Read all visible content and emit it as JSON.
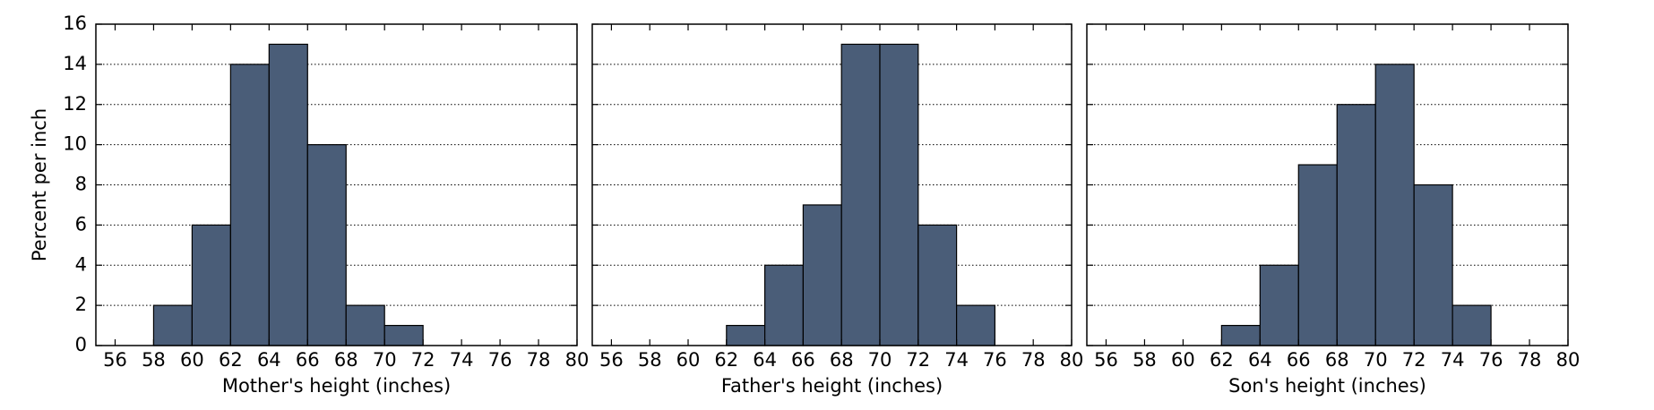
{
  "chart_data": [
    {
      "type": "histogram",
      "xlabel": "Mother's height (inches)",
      "ylabel": "Percent per inch",
      "bins": [
        56,
        58,
        60,
        62,
        64,
        66,
        68,
        70,
        72,
        74,
        76,
        78,
        80
      ],
      "values": [
        0,
        2,
        6,
        14,
        15,
        10,
        2,
        1,
        0,
        0,
        0,
        0
      ],
      "color": "#4a5d78",
      "xlim": [
        55,
        80
      ],
      "ylim": [
        0,
        16
      ],
      "xticks": [
        56,
        58,
        60,
        62,
        64,
        66,
        68,
        70,
        72,
        74,
        76,
        78,
        80
      ],
      "yticks": [
        0,
        2,
        4,
        6,
        8,
        10,
        12,
        14,
        16
      ],
      "grid": true
    },
    {
      "type": "histogram",
      "xlabel": "Father's height (inches)",
      "bins": [
        56,
        58,
        60,
        62,
        64,
        66,
        68,
        70,
        72,
        74,
        76,
        78,
        80
      ],
      "values": [
        0,
        0,
        0,
        1,
        4,
        7,
        15,
        15,
        6,
        2,
        0,
        0
      ],
      "color": "#4a5d78",
      "xlim": [
        55,
        80
      ],
      "ylim": [
        0,
        16
      ],
      "xticks": [
        56,
        58,
        60,
        62,
        64,
        66,
        68,
        70,
        72,
        74,
        76,
        78,
        80
      ],
      "yticks": [
        0,
        2,
        4,
        6,
        8,
        10,
        12,
        14,
        16
      ],
      "grid": true
    },
    {
      "type": "histogram",
      "xlabel": "Son's height (inches)",
      "bins": [
        56,
        58,
        60,
        62,
        64,
        66,
        68,
        70,
        72,
        74,
        76,
        78,
        80
      ],
      "values": [
        0,
        0,
        0,
        1,
        4,
        9,
        12,
        14,
        8,
        2,
        0,
        0
      ],
      "color": "#4a5d78",
      "xlim": [
        55,
        80
      ],
      "ylim": [
        0,
        16
      ],
      "xticks": [
        56,
        58,
        60,
        62,
        64,
        66,
        68,
        70,
        72,
        74,
        76,
        78,
        80
      ],
      "yticks": [
        0,
        2,
        4,
        6,
        8,
        10,
        12,
        14,
        16
      ],
      "grid": true
    }
  ]
}
